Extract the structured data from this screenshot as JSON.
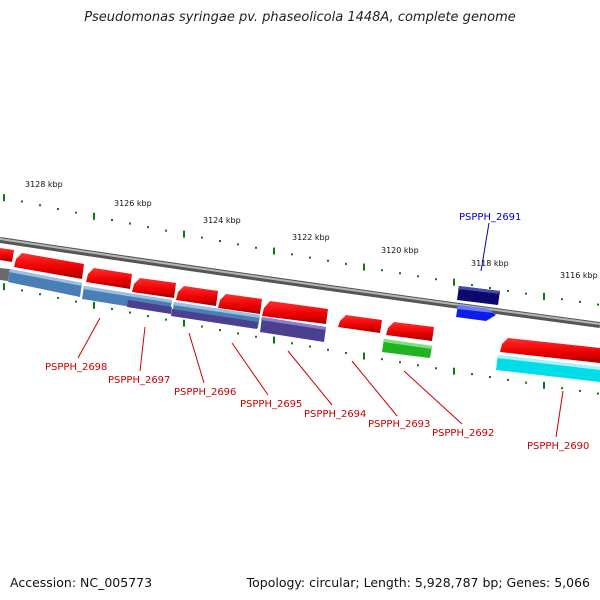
{
  "title": "Pseudomonas syringae pv. phaseolicola 1448A, complete genome",
  "footer": {
    "accession": "Accession: NC_005773",
    "summary": "Topology: circular; Length: 5,928,787 bp; Genes: 5,066"
  },
  "scale": {
    "ticks": [
      "3128 kbp",
      "3126 kbp",
      "3124 kbp",
      "3122 kbp",
      "3120 kbp",
      "3118 kbp",
      "3116 kbp"
    ]
  },
  "genes": [
    {
      "label": "PSPPH_2698",
      "color": "#cc0000"
    },
    {
      "label": "PSPPH_2697",
      "color": "#cc0000"
    },
    {
      "label": "PSPPH_2696",
      "color": "#cc0000"
    },
    {
      "label": "PSPPH_2695",
      "color": "#cc0000"
    },
    {
      "label": "PSPPH_2694",
      "color": "#cc0000"
    },
    {
      "label": "PSPPH_2693",
      "color": "#cc0000"
    },
    {
      "label": "PSPPH_2692",
      "color": "#cc0000"
    },
    {
      "label": "PSPPH_2691",
      "color": "#0000cc"
    },
    {
      "label": "PSPPH_2690",
      "color": "#cc0000"
    }
  ]
}
